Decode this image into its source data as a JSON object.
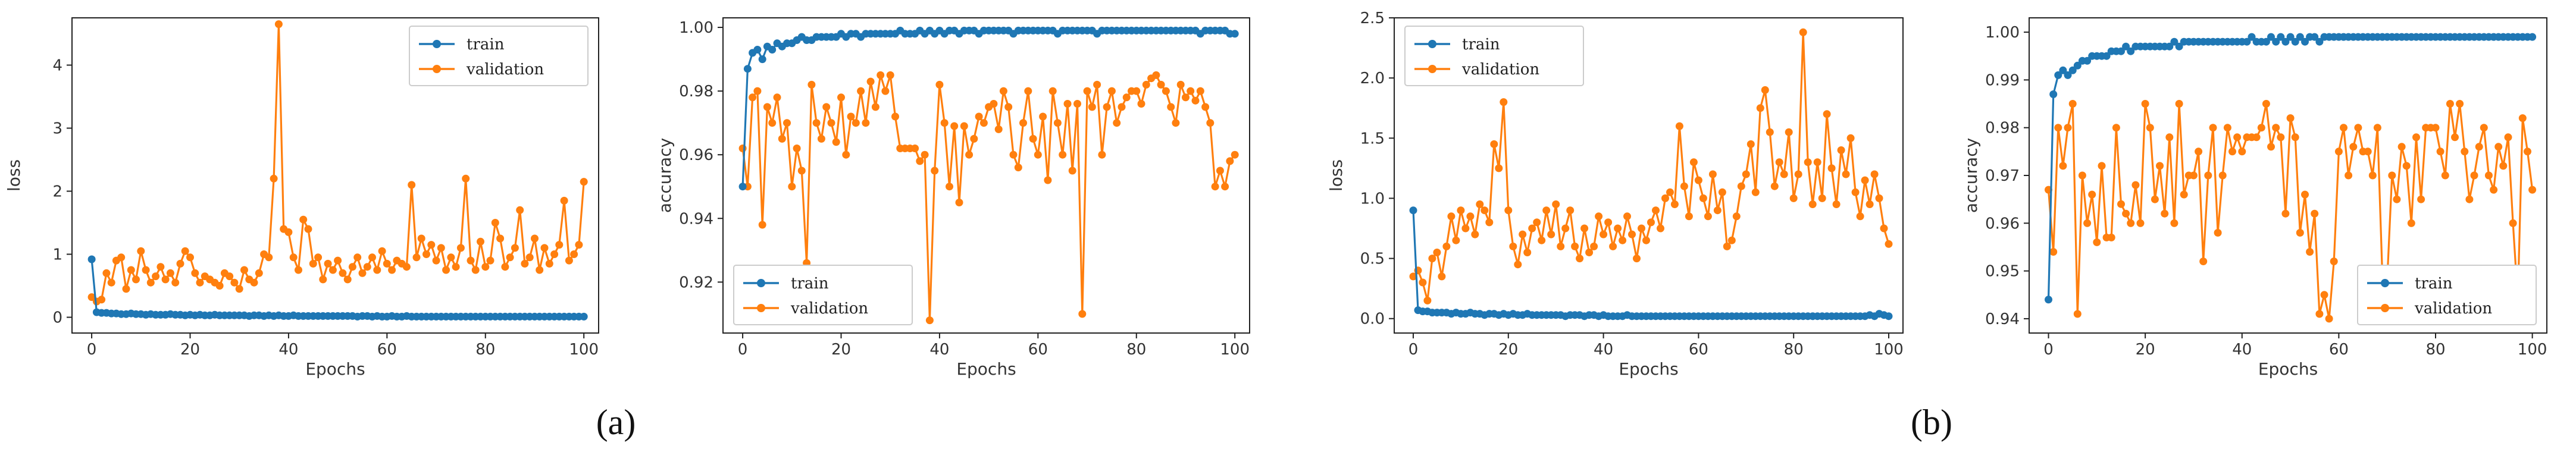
{
  "colors": {
    "train": "#1f77b4",
    "validation": "#ff7f0e"
  },
  "captions": [
    "(a)",
    "(b)"
  ],
  "chart_data": [
    {
      "type": "line",
      "xlabel": "Epochs",
      "ylabel": "loss",
      "xlim": [
        -4,
        103
      ],
      "ylim": [
        -0.25,
        4.75
      ],
      "xticks": [
        "0",
        "20",
        "40",
        "60",
        "80",
        "100"
      ],
      "yticks": [
        "0",
        "1",
        "2",
        "3",
        "4"
      ],
      "ytick_values": [
        0,
        1,
        2,
        3,
        4
      ],
      "legend": "top-right",
      "grid": false,
      "series": [
        {
          "name": "train",
          "values": [
            0.92,
            0.08,
            0.07,
            0.07,
            0.06,
            0.06,
            0.05,
            0.05,
            0.06,
            0.05,
            0.05,
            0.04,
            0.05,
            0.04,
            0.04,
            0.04,
            0.05,
            0.04,
            0.04,
            0.03,
            0.04,
            0.03,
            0.04,
            0.03,
            0.03,
            0.04,
            0.03,
            0.03,
            0.03,
            0.03,
            0.03,
            0.03,
            0.02,
            0.03,
            0.03,
            0.02,
            0.03,
            0.02,
            0.03,
            0.02,
            0.02,
            0.03,
            0.02,
            0.02,
            0.02,
            0.02,
            0.02,
            0.02,
            0.02,
            0.02,
            0.02,
            0.02,
            0.02,
            0.02,
            0.01,
            0.02,
            0.02,
            0.01,
            0.02,
            0.01,
            0.01,
            0.02,
            0.01,
            0.01,
            0.02,
            0.01,
            0.01,
            0.01,
            0.01,
            0.01,
            0.01,
            0.01,
            0.01,
            0.01,
            0.01,
            0.01,
            0.01,
            0.01,
            0.01,
            0.01,
            0.01,
            0.01,
            0.01,
            0.01,
            0.01,
            0.01,
            0.01,
            0.01,
            0.01,
            0.01,
            0.01,
            0.01,
            0.01,
            0.01,
            0.01,
            0.01,
            0.01,
            0.01,
            0.01,
            0.01,
            0.01
          ]
        },
        {
          "name": "validation",
          "values": [
            0.32,
            0.25,
            0.28,
            0.7,
            0.55,
            0.9,
            0.95,
            0.45,
            0.75,
            0.6,
            1.05,
            0.75,
            0.55,
            0.65,
            0.8,
            0.6,
            0.7,
            0.55,
            0.85,
            1.05,
            0.95,
            0.7,
            0.55,
            0.65,
            0.6,
            0.55,
            0.5,
            0.7,
            0.65,
            0.55,
            0.45,
            0.75,
            0.6,
            0.55,
            0.7,
            1.0,
            0.95,
            2.2,
            4.65,
            1.4,
            1.35,
            0.95,
            0.75,
            1.55,
            1.4,
            0.85,
            0.95,
            0.6,
            0.85,
            0.75,
            0.9,
            0.7,
            0.6,
            0.8,
            0.95,
            0.7,
            0.8,
            0.95,
            0.75,
            1.05,
            0.85,
            0.75,
            0.9,
            0.85,
            0.8,
            2.1,
            0.95,
            1.25,
            1.0,
            1.15,
            0.9,
            1.1,
            0.75,
            0.95,
            0.8,
            1.1,
            2.2,
            0.9,
            0.75,
            1.2,
            0.8,
            0.9,
            1.5,
            1.25,
            0.8,
            0.95,
            1.1,
            1.7,
            0.85,
            0.95,
            1.25,
            0.75,
            1.1,
            0.85,
            1.0,
            1.15,
            1.85,
            0.9,
            1.0,
            1.15,
            2.15
          ]
        }
      ]
    },
    {
      "type": "line",
      "xlabel": "Epochs",
      "ylabel": "accuracy",
      "xlim": [
        -4,
        103
      ],
      "ylim": [
        0.904,
        1.003
      ],
      "xticks": [
        "0",
        "20",
        "40",
        "60",
        "80",
        "100"
      ],
      "yticks": [
        "0.92",
        "0.94",
        "0.96",
        "0.98",
        "1.00"
      ],
      "ytick_values": [
        0.92,
        0.94,
        0.96,
        0.98,
        1.0
      ],
      "legend": "bottom-left",
      "grid": false,
      "series": [
        {
          "name": "train",
          "values": [
            0.95,
            0.987,
            0.992,
            0.993,
            0.99,
            0.994,
            0.993,
            0.995,
            0.994,
            0.995,
            0.995,
            0.996,
            0.997,
            0.996,
            0.996,
            0.997,
            0.997,
            0.997,
            0.997,
            0.997,
            0.998,
            0.997,
            0.998,
            0.998,
            0.997,
            0.998,
            0.998,
            0.998,
            0.998,
            0.998,
            0.998,
            0.998,
            0.999,
            0.998,
            0.998,
            0.998,
            0.999,
            0.998,
            0.999,
            0.998,
            0.999,
            0.998,
            0.999,
            0.999,
            0.998,
            0.999,
            0.999,
            0.999,
            0.998,
            0.999,
            0.999,
            0.999,
            0.999,
            0.999,
            0.999,
            0.998,
            0.999,
            0.999,
            0.999,
            0.999,
            0.999,
            0.999,
            0.999,
            0.999,
            0.998,
            0.999,
            0.999,
            0.999,
            0.999,
            0.999,
            0.999,
            0.999,
            0.998,
            0.999,
            0.999,
            0.999,
            0.999,
            0.999,
            0.999,
            0.999,
            0.999,
            0.999,
            0.999,
            0.999,
            0.999,
            0.999,
            0.999,
            0.999,
            0.999,
            0.999,
            0.999,
            0.999,
            0.999,
            0.998,
            0.999,
            0.999,
            0.999,
            0.999,
            0.999,
            0.998,
            0.998
          ]
        },
        {
          "name": "validation",
          "values": [
            0.962,
            0.95,
            0.978,
            0.98,
            0.938,
            0.975,
            0.97,
            0.978,
            0.965,
            0.97,
            0.95,
            0.962,
            0.955,
            0.926,
            0.982,
            0.97,
            0.965,
            0.975,
            0.97,
            0.964,
            0.978,
            0.96,
            0.972,
            0.97,
            0.98,
            0.97,
            0.983,
            0.975,
            0.985,
            0.98,
            0.985,
            0.972,
            0.962,
            0.962,
            0.962,
            0.962,
            0.958,
            0.96,
            0.908,
            0.955,
            0.982,
            0.97,
            0.95,
            0.969,
            0.945,
            0.969,
            0.96,
            0.965,
            0.972,
            0.97,
            0.975,
            0.976,
            0.968,
            0.98,
            0.975,
            0.96,
            0.956,
            0.97,
            0.98,
            0.965,
            0.96,
            0.972,
            0.952,
            0.98,
            0.97,
            0.96,
            0.976,
            0.955,
            0.976,
            0.91,
            0.98,
            0.975,
            0.982,
            0.96,
            0.975,
            0.98,
            0.97,
            0.975,
            0.978,
            0.98,
            0.98,
            0.976,
            0.982,
            0.984,
            0.985,
            0.982,
            0.98,
            0.975,
            0.97,
            0.982,
            0.978,
            0.98,
            0.977,
            0.98,
            0.975,
            0.97,
            0.95,
            0.955,
            0.95,
            0.958,
            0.96
          ]
        }
      ]
    },
    {
      "type": "line",
      "xlabel": "Epochs",
      "ylabel": "loss",
      "xlim": [
        -4,
        103
      ],
      "ylim": [
        -0.12,
        2.5
      ],
      "xticks": [
        "0",
        "20",
        "40",
        "60",
        "80",
        "100"
      ],
      "yticks": [
        "0.0",
        "0.5",
        "1.0",
        "1.5",
        "2.0",
        "2.5"
      ],
      "ytick_values": [
        0,
        0.5,
        1.0,
        1.5,
        2.0,
        2.5
      ],
      "legend": "top-left",
      "grid": false,
      "series": [
        {
          "name": "train",
          "values": [
            0.9,
            0.07,
            0.06,
            0.06,
            0.05,
            0.05,
            0.05,
            0.05,
            0.04,
            0.05,
            0.04,
            0.04,
            0.05,
            0.04,
            0.04,
            0.03,
            0.04,
            0.04,
            0.03,
            0.04,
            0.03,
            0.04,
            0.03,
            0.03,
            0.04,
            0.03,
            0.03,
            0.03,
            0.03,
            0.03,
            0.03,
            0.03,
            0.02,
            0.03,
            0.03,
            0.03,
            0.02,
            0.03,
            0.03,
            0.02,
            0.03,
            0.02,
            0.02,
            0.02,
            0.02,
            0.03,
            0.02,
            0.02,
            0.02,
            0.02,
            0.02,
            0.02,
            0.02,
            0.02,
            0.02,
            0.02,
            0.02,
            0.02,
            0.02,
            0.02,
            0.02,
            0.02,
            0.02,
            0.02,
            0.02,
            0.02,
            0.02,
            0.02,
            0.02,
            0.02,
            0.02,
            0.02,
            0.02,
            0.02,
            0.02,
            0.02,
            0.02,
            0.02,
            0.02,
            0.02,
            0.02,
            0.02,
            0.02,
            0.02,
            0.02,
            0.02,
            0.02,
            0.02,
            0.02,
            0.02,
            0.02,
            0.02,
            0.02,
            0.02,
            0.02,
            0.02,
            0.03,
            0.02,
            0.04,
            0.03,
            0.02
          ]
        },
        {
          "name": "validation",
          "values": [
            0.35,
            0.4,
            0.3,
            0.15,
            0.5,
            0.55,
            0.35,
            0.6,
            0.85,
            0.65,
            0.9,
            0.75,
            0.85,
            0.7,
            0.95,
            0.9,
            0.8,
            1.45,
            1.25,
            1.8,
            0.9,
            0.6,
            0.45,
            0.7,
            0.55,
            0.75,
            0.8,
            0.65,
            0.9,
            0.7,
            0.95,
            0.6,
            0.75,
            0.9,
            0.6,
            0.5,
            0.75,
            0.55,
            0.6,
            0.85,
            0.7,
            0.8,
            0.6,
            0.75,
            0.65,
            0.85,
            0.7,
            0.5,
            0.75,
            0.65,
            0.8,
            0.9,
            0.75,
            1.0,
            1.05,
            0.95,
            1.6,
            1.1,
            0.85,
            1.3,
            1.15,
            1.0,
            0.85,
            1.2,
            0.9,
            1.05,
            0.6,
            0.65,
            0.85,
            1.1,
            1.2,
            1.45,
            1.05,
            1.75,
            1.9,
            1.55,
            1.1,
            1.3,
            1.2,
            1.55,
            1.0,
            1.2,
            2.38,
            1.3,
            0.95,
            1.3,
            1.0,
            1.7,
            1.25,
            0.95,
            1.4,
            1.2,
            1.5,
            1.05,
            0.85,
            1.15,
            0.95,
            1.2,
            1.0,
            0.75,
            0.62
          ]
        }
      ]
    },
    {
      "type": "line",
      "xlabel": "Epochs",
      "ylabel": "accuracy",
      "xlim": [
        -4,
        103
      ],
      "ylim": [
        0.937,
        1.003
      ],
      "xticks": [
        "0",
        "20",
        "40",
        "60",
        "80",
        "100"
      ],
      "yticks": [
        "0.94",
        "0.95",
        "0.96",
        "0.97",
        "0.98",
        "0.99",
        "1.00"
      ],
      "ytick_values": [
        0.94,
        0.95,
        0.96,
        0.97,
        0.98,
        0.99,
        1.0
      ],
      "legend": "bottom-right",
      "grid": false,
      "series": [
        {
          "name": "train",
          "values": [
            0.944,
            0.987,
            0.991,
            0.992,
            0.991,
            0.992,
            0.993,
            0.994,
            0.994,
            0.995,
            0.995,
            0.995,
            0.995,
            0.996,
            0.996,
            0.996,
            0.997,
            0.996,
            0.997,
            0.997,
            0.997,
            0.997,
            0.997,
            0.997,
            0.997,
            0.997,
            0.998,
            0.997,
            0.998,
            0.998,
            0.998,
            0.998,
            0.998,
            0.998,
            0.998,
            0.998,
            0.998,
            0.998,
            0.998,
            0.998,
            0.998,
            0.998,
            0.999,
            0.998,
            0.998,
            0.998,
            0.999,
            0.998,
            0.999,
            0.998,
            0.999,
            0.998,
            0.999,
            0.998,
            0.999,
            0.999,
            0.998,
            0.999,
            0.999,
            0.999,
            0.999,
            0.999,
            0.999,
            0.999,
            0.999,
            0.999,
            0.999,
            0.999,
            0.999,
            0.999,
            0.999,
            0.999,
            0.999,
            0.999,
            0.999,
            0.999,
            0.999,
            0.999,
            0.999,
            0.999,
            0.999,
            0.999,
            0.999,
            0.999,
            0.999,
            0.999,
            0.999,
            0.999,
            0.999,
            0.999,
            0.999,
            0.999,
            0.999,
            0.999,
            0.999,
            0.999,
            0.999,
            0.999,
            0.999,
            0.999,
            0.999
          ]
        },
        {
          "name": "validation",
          "values": [
            0.967,
            0.954,
            0.98,
            0.972,
            0.98,
            0.985,
            0.941,
            0.97,
            0.96,
            0.966,
            0.956,
            0.972,
            0.957,
            0.957,
            0.98,
            0.964,
            0.962,
            0.96,
            0.968,
            0.96,
            0.985,
            0.98,
            0.965,
            0.972,
            0.962,
            0.978,
            0.96,
            0.985,
            0.966,
            0.97,
            0.97,
            0.975,
            0.952,
            0.97,
            0.98,
            0.958,
            0.97,
            0.98,
            0.975,
            0.978,
            0.975,
            0.978,
            0.978,
            0.978,
            0.98,
            0.985,
            0.976,
            0.98,
            0.978,
            0.962,
            0.982,
            0.978,
            0.958,
            0.966,
            0.954,
            0.962,
            0.941,
            0.945,
            0.94,
            0.952,
            0.975,
            0.98,
            0.97,
            0.976,
            0.98,
            0.975,
            0.975,
            0.97,
            0.98,
            0.949,
            0.948,
            0.97,
            0.965,
            0.976,
            0.972,
            0.96,
            0.978,
            0.965,
            0.98,
            0.98,
            0.98,
            0.975,
            0.97,
            0.985,
            0.978,
            0.985,
            0.975,
            0.965,
            0.97,
            0.976,
            0.98,
            0.97,
            0.967,
            0.976,
            0.972,
            0.978,
            0.96,
            0.944,
            0.982,
            0.975,
            0.967
          ]
        }
      ]
    }
  ]
}
